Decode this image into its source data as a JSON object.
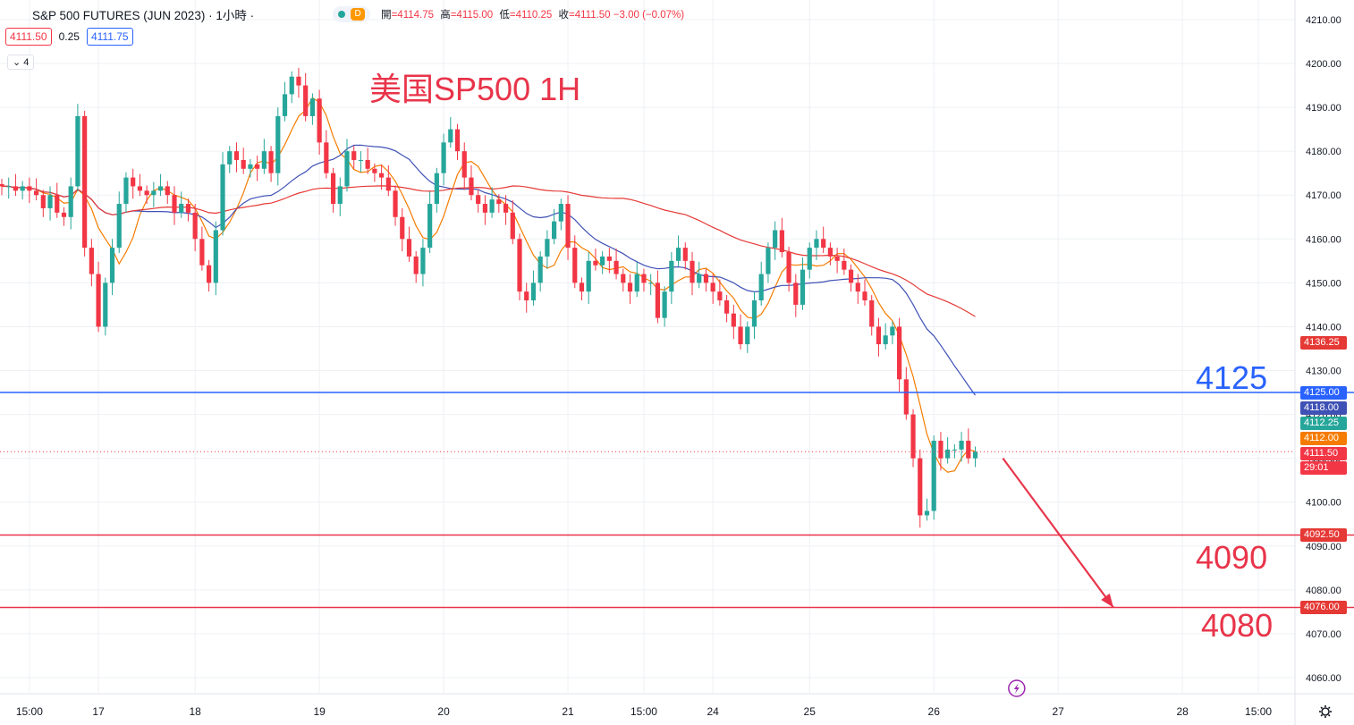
{
  "header": {
    "symbol": "S&P 500 FUTURES (JUN 2023) · 1小時 ·",
    "pill_label": "D",
    "ohlc": [
      {
        "label": "開",
        "value": "=4114.75"
      },
      {
        "label": "高",
        "value": "=4115.00"
      },
      {
        "label": "低",
        "value": "=4110.25"
      },
      {
        "label": "收",
        "value": "=4111.50 −3.00 (−0.07%)"
      }
    ]
  },
  "quote": {
    "sell": "4111.50",
    "spread": "0.25",
    "buy": "4111.75"
  },
  "indicator_count": "4",
  "annotation": {
    "title": "美国SP500 1H",
    "level_labels": {
      "resistance": "4125",
      "support1": "4090",
      "support2": "4080"
    }
  },
  "colors": {
    "up": "#26a69a",
    "down": "#f23645",
    "blue": "#2962ff",
    "ma_fast": "#f57c00",
    "ma_slow": "#e53935",
    "ma_mid": "#3f51b5"
  },
  "chart_data": {
    "type": "candlestick",
    "y_axis": {
      "range": [
        4055,
        4212
      ],
      "ticks": [
        4060,
        4070,
        4080,
        4090,
        4100,
        4110,
        4120,
        4130,
        4140,
        4150,
        4160,
        4170,
        4180,
        4190,
        4200,
        4210
      ],
      "tick_labels": [
        "4060.00",
        "4070.00",
        "4080.00",
        "4090.00",
        "4100.00",
        "4110.00",
        "4120.00",
        "4130.00",
        "4140.00",
        "4150.00",
        "4160.00",
        "4170.00",
        "4180.00",
        "4190.00",
        "4200.00",
        "4210.00"
      ]
    },
    "x_axis": {
      "labels": [
        {
          "text": "15:00",
          "bar": 4
        },
        {
          "text": "17",
          "bar": 14
        },
        {
          "text": "18",
          "bar": 28
        },
        {
          "text": "19",
          "bar": 46
        },
        {
          "text": "20",
          "bar": 64
        },
        {
          "text": "21",
          "bar": 82
        },
        {
          "text": "15:00",
          "bar": 93
        },
        {
          "text": "24",
          "bar": 103
        },
        {
          "text": "25",
          "bar": 117
        },
        {
          "text": "26",
          "bar": 135
        },
        {
          "text": "27",
          "bar": 153
        },
        {
          "text": "28",
          "bar": 171
        },
        {
          "text": "15:00",
          "bar": 182
        }
      ]
    },
    "horizontal_lines": [
      {
        "name": "resistance",
        "value": 4125.0,
        "color": "#2962ff"
      },
      {
        "name": "support1",
        "value": 4092.5,
        "color": "#e8344a"
      },
      {
        "name": "support2",
        "value": 4076.0,
        "color": "#e8344a"
      }
    ],
    "price_tags": [
      {
        "value": "4136.25",
        "y": 4136.25,
        "bg": "#e53935"
      },
      {
        "value": "4125.00",
        "y": 4125.0,
        "bg": "#2962ff"
      },
      {
        "value": "4118.00",
        "y": 4121.5,
        "bg": "#3f51b5"
      },
      {
        "value": "4112.25",
        "y": 4118.0,
        "bg": "#26a69a"
      },
      {
        "value": "4112.00",
        "y": 4114.5,
        "bg": "#f57c00"
      },
      {
        "value": "4111.50",
        "y": 4111.0,
        "bg": "#f23645"
      },
      {
        "value": "29:01",
        "y": 4107.8,
        "bg": "#f23645"
      },
      {
        "value": "4092.50",
        "y": 4092.5,
        "bg": "#e53935"
      },
      {
        "value": "4076.00",
        "y": 4076.0,
        "bg": "#e53935"
      }
    ],
    "last_price": 4111.5,
    "closes": [
      4172,
      4172,
      4171,
      4172,
      4171,
      4170,
      4167,
      4170,
      4166,
      4165,
      4172,
      4188,
      4158,
      4152,
      4140,
      4150,
      4158,
      4168,
      4174,
      4172,
      4171,
      4170,
      4171,
      4172,
      4170,
      4166,
      4168,
      4166,
      4160,
      4154,
      4150,
      4162,
      4177,
      4180,
      4178,
      4176,
      4177,
      4176,
      4180,
      4175,
      4188,
      4193,
      4197,
      4195,
      4188,
      4192,
      4182,
      4175,
      4168,
      4172,
      4180,
      4178,
      4178,
      4176,
      4175,
      4174,
      4171,
      4165,
      4160,
      4156,
      4152,
      4158,
      4168,
      4175,
      4182,
      4185,
      4180,
      4174,
      4170,
      4168,
      4166,
      4169,
      4168,
      4166,
      4160,
      4148,
      4146,
      4150,
      4156,
      4160,
      4164,
      4168,
      4158,
      4150,
      4148,
      4155,
      4154,
      4156,
      4155,
      4152,
      4150,
      4148,
      4152,
      4150,
      4150,
      4142,
      4148,
      4155,
      4158,
      4155,
      4150,
      4152,
      4150,
      4148,
      4146,
      4143,
      4140,
      4136,
      4140,
      4146,
      4152,
      4158,
      4162,
      4157,
      4150,
      4145,
      4153,
      4158,
      4160,
      4158,
      4156,
      4155,
      4153,
      4150,
      4148,
      4146,
      4140,
      4136,
      4138,
      4140,
      4128,
      4120,
      4110,
      4097,
      4098,
      4114,
      4110,
      4112,
      4112,
      4114,
      4110,
      4111.5
    ],
    "moving_averages": [
      {
        "name": "MA-fast",
        "period": 6,
        "color": "#f57c00"
      },
      {
        "name": "MA-mid",
        "period": 20,
        "color": "#3f51b5"
      },
      {
        "name": "MA-slow",
        "period": 60,
        "color": "#e53935"
      }
    ],
    "projection": {
      "from_value": 4110,
      "from_bar": 145,
      "to_value": 4076,
      "to_bar": 161,
      "color": "#e8344a"
    }
  }
}
